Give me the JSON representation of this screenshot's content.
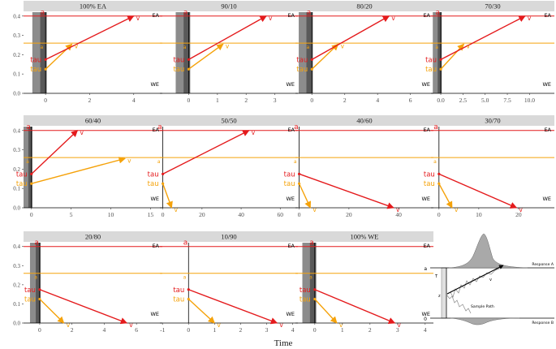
{
  "colors": {
    "red": "#e41a1c",
    "orange": "#f5a20a",
    "strip_bg": "#d9d9d9",
    "gray_rect": "#8c8c8c",
    "dark_gray": "#595959",
    "axis_text": "#4d4d4d"
  },
  "x_title": "Time",
  "corner_labels": {
    "right": "EA",
    "bottom": "WE"
  },
  "line_labels": {
    "a": "a",
    "tau": "tau",
    "v": "v"
  },
  "diagram": {
    "label_a": "a",
    "label_0": "0",
    "label_tau": "T",
    "label_z": "z",
    "label_v": "v",
    "response_a": "Response A",
    "response_b": "Response B",
    "sample_path": "Sample Path"
  },
  "chart_data": {
    "type": "line",
    "ylim": [
      0,
      0.42
    ],
    "y_ticks": [
      "0.0",
      "0.1",
      "0.2",
      "0.3",
      "0.4"
    ],
    "red_threshold_a": 0.4,
    "orange_threshold_a": 0.26,
    "panels": [
      {
        "title": "100% EA",
        "xlim": [
          -1.0,
          5.3
        ],
        "x_ticks": [
          0,
          2,
          4
        ],
        "x_tick_labels": [
          "0",
          "2",
          "4"
        ],
        "band": [
          -0.6,
          0.05
        ],
        "red": {
          "tau": 0.175,
          "v": [
            4.0,
            0.4
          ]
        },
        "orange": {
          "tau": 0.125,
          "v": [
            1.2,
            0.255
          ]
        }
      },
      {
        "title": "90/10",
        "xlim": [
          -1.0,
          3.8
        ],
        "x_ticks": [
          0,
          1,
          2,
          3
        ],
        "x_tick_labels": [
          "0",
          "1",
          "2",
          "3"
        ],
        "band": [
          -0.45,
          0.05
        ],
        "red": {
          "tau": 0.175,
          "v": [
            2.7,
            0.4
          ]
        },
        "orange": {
          "tau": 0.125,
          "v": [
            1.2,
            0.255
          ]
        }
      },
      {
        "title": "80/20",
        "xlim": [
          -1.0,
          7.4
        ],
        "x_ticks": [
          0,
          2,
          4,
          6
        ],
        "x_tick_labels": [
          "0",
          "2",
          "4",
          "6"
        ],
        "band": [
          -0.8,
          0.05
        ],
        "red": {
          "tau": 0.175,
          "v": [
            4.7,
            0.4
          ]
        },
        "orange": {
          "tau": 0.125,
          "v": [
            1.6,
            0.255
          ]
        }
      },
      {
        "title": "70/30",
        "xlim": [
          -1.1,
          12.8
        ],
        "x_ticks": [
          0,
          2.5,
          5,
          7.5,
          10
        ],
        "x_tick_labels": [
          "0.0",
          "2.5",
          "5.0",
          "7.5",
          "10.0"
        ],
        "band": [
          -0.9,
          0.1
        ],
        "red": {
          "tau": 0.175,
          "v": [
            9.5,
            0.4
          ]
        },
        "orange": {
          "tau": 0.125,
          "v": [
            2.6,
            0.255
          ]
        }
      },
      {
        "title": "60/40",
        "xlim": [
          -1.0,
          16.5
        ],
        "x_ticks": [
          0,
          5,
          10,
          15
        ],
        "x_tick_labels": [
          "0",
          "5",
          "10",
          "15"
        ],
        "band": [
          -1.0,
          0.1
        ],
        "red": {
          "tau": 0.175,
          "v": [
            5.8,
            0.4
          ]
        },
        "orange": {
          "tau": 0.125,
          "v": [
            11.8,
            0.255
          ]
        },
        "orange_a_point": -0.2
      },
      {
        "title": "50/50",
        "xlim": [
          -1.5,
          69
        ],
        "x_ticks": [
          0,
          20,
          40,
          60
        ],
        "x_tick_labels": [
          "0",
          "20",
          "40",
          "60"
        ],
        "red": {
          "tau": 0.175,
          "v": [
            44,
            0.4
          ]
        },
        "orange": {
          "tau": 0.125,
          "v": [
            4.5,
            0.0
          ]
        },
        "orange_a_point": -0.3
      },
      {
        "title": "40/60",
        "xlim": [
          -1.5,
          54
        ],
        "x_ticks": [
          0,
          20,
          40
        ],
        "x_tick_labels": [
          "0",
          "20",
          "40"
        ],
        "red": {
          "tau": 0.175,
          "v": [
            38,
            0.0
          ]
        },
        "orange": {
          "tau": 0.125,
          "v": [
            4.5,
            0.0
          ]
        },
        "orange_a_point": -0.3
      },
      {
        "title": "30/70",
        "xlim": [
          -2.0,
          29
        ],
        "x_ticks": [
          0,
          10,
          20
        ],
        "x_tick_labels": [
          "0",
          "10",
          "20"
        ],
        "red": {
          "tau": 0.175,
          "v": [
            19.5,
            0.0
          ]
        },
        "orange": {
          "tau": 0.125,
          "v": [
            3.3,
            0.0
          ]
        },
        "orange_a_point": -0.3
      },
      {
        "title": "20/80",
        "xlim": [
          -1.0,
          7.6
        ],
        "x_ticks": [
          0,
          2,
          4,
          6
        ],
        "x_tick_labels": [
          "0",
          "2",
          "4",
          "6"
        ],
        "band": [
          -0.6,
          0.05
        ],
        "red": {
          "tau": 0.175,
          "v": [
            5.4,
            0.0
          ]
        },
        "orange": {
          "tau": 0.125,
          "v": [
            1.5,
            0.0
          ]
        }
      },
      {
        "title": "10/90",
        "xlim": [
          -1.1,
          4.2
        ],
        "x_ticks": [
          -1,
          0,
          1,
          2,
          3,
          4
        ],
        "x_tick_labels": [
          "-1",
          "0",
          "1",
          "2",
          "3",
          "4"
        ],
        "red": {
          "tau": 0.175,
          "v": [
            3.4,
            0.0
          ]
        },
        "orange": {
          "tau": 0.125,
          "v": [
            1.0,
            0.0
          ]
        },
        "orange_a_point": -0.1
      },
      {
        "title": "100% WE",
        "xlim": [
          -0.7,
          4.3
        ],
        "x_ticks": [
          0,
          1,
          2,
          3,
          4
        ],
        "x_tick_labels": [
          "0",
          "1",
          "2",
          "3",
          "4"
        ],
        "band": [
          -0.45,
          0.05
        ],
        "red": {
          "tau": 0.175,
          "v": [
            2.9,
            0.0
          ]
        },
        "orange": {
          "tau": 0.125,
          "v": [
            0.8,
            0.0
          ]
        }
      }
    ]
  }
}
